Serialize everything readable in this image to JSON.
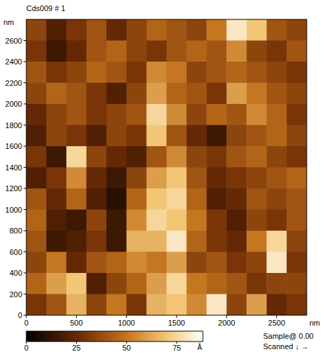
{
  "chart_data": {
    "type": "heatmap",
    "title": "Cds009 # 1",
    "x_label": "nm",
    "y_label": "nm",
    "xlim": [
      0,
      2800
    ],
    "ylim": [
      0,
      2800
    ],
    "xticks": [
      0,
      500,
      1000,
      1500,
      2000,
      2500
    ],
    "yticks": [
      0,
      200,
      400,
      600,
      800,
      1000,
      1200,
      1400,
      1600,
      1800,
      2000,
      2200,
      2400,
      2600
    ],
    "x": [
      100,
      300,
      500,
      700,
      900,
      1100,
      1300,
      1500,
      1700,
      1900,
      2100,
      2300,
      2500,
      2700
    ],
    "y": [
      2700,
      2500,
      2300,
      2100,
      1900,
      1700,
      1500,
      1300,
      1100,
      900,
      700,
      500,
      300,
      100
    ],
    "values": [
      [
        35,
        20,
        30,
        40,
        25,
        35,
        45,
        40,
        35,
        50,
        80,
        70,
        40,
        35
      ],
      [
        30,
        15,
        25,
        40,
        45,
        35,
        30,
        40,
        45,
        40,
        55,
        35,
        30,
        40
      ],
      [
        40,
        30,
        35,
        45,
        40,
        30,
        55,
        50,
        35,
        40,
        45,
        40,
        35,
        30
      ],
      [
        35,
        45,
        40,
        30,
        20,
        35,
        60,
        45,
        40,
        30,
        60,
        50,
        40,
        35
      ],
      [
        25,
        35,
        40,
        30,
        35,
        40,
        75,
        55,
        35,
        45,
        40,
        55,
        45,
        30
      ],
      [
        20,
        35,
        30,
        20,
        35,
        30,
        70,
        40,
        25,
        15,
        35,
        40,
        45,
        35
      ],
      [
        30,
        15,
        75,
        35,
        25,
        20,
        40,
        55,
        35,
        30,
        40,
        45,
        35,
        30
      ],
      [
        20,
        30,
        55,
        25,
        15,
        35,
        60,
        70,
        40,
        25,
        30,
        35,
        40,
        45
      ],
      [
        40,
        25,
        45,
        20,
        10,
        45,
        70,
        75,
        45,
        20,
        25,
        40,
        35,
        40
      ],
      [
        45,
        20,
        15,
        35,
        15,
        55,
        75,
        70,
        50,
        30,
        20,
        35,
        30,
        40
      ],
      [
        40,
        15,
        20,
        30,
        15,
        65,
        65,
        80,
        45,
        30,
        25,
        50,
        75,
        35
      ],
      [
        35,
        50,
        25,
        40,
        45,
        55,
        50,
        60,
        35,
        40,
        30,
        35,
        80,
        30
      ],
      [
        45,
        60,
        70,
        20,
        35,
        45,
        60,
        75,
        50,
        45,
        40,
        30,
        35,
        35
      ],
      [
        30,
        40,
        65,
        35,
        50,
        30,
        65,
        70,
        55,
        80,
        35,
        60,
        25,
        30
      ]
    ],
    "colorbar": {
      "range": [
        0,
        88
      ],
      "ticks": [
        0,
        25,
        50,
        75
      ],
      "label": "Å"
    },
    "annotations": [
      "Sample@ 0.00",
      "Scanned ↓ →"
    ]
  }
}
